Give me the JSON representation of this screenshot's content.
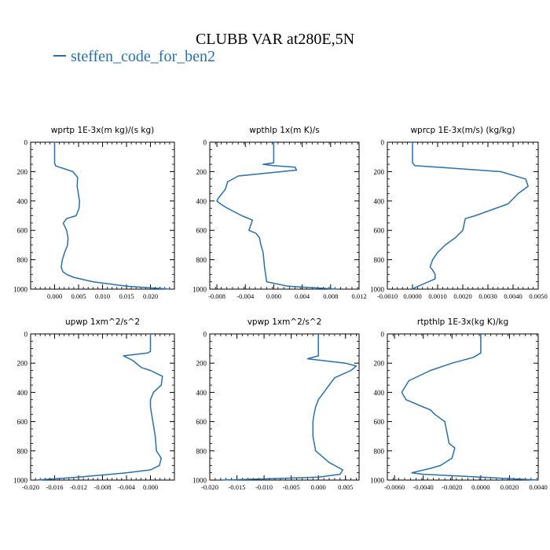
{
  "figure": {
    "title": "CLUBB VAR at280E,5N",
    "legend_label": "steffen_code_for_ben2",
    "series_color": "#2a6fa8"
  },
  "chart_data": [
    {
      "type": "line",
      "title": "wprtp  1E-3x(m kg)/(s kg)",
      "series": [
        {
          "name": "steffen_code_for_ben2",
          "x": [
            0.0,
            0.0,
            0.0,
            0.0002,
            0.001,
            0.0038,
            0.0048,
            0.0047,
            0.0049,
            0.0052,
            0.0051,
            0.0045,
            0.0025,
            0.0018,
            0.0025,
            0.0028,
            0.0027,
            0.0021,
            0.0016,
            0.0014,
            0.0017,
            0.0025,
            0.004,
            0.008,
            0.015,
            0.024
          ],
          "y": [
            0,
            100,
            140,
            160,
            170,
            200,
            240,
            300,
            340,
            400,
            450,
            500,
            520,
            550,
            600,
            650,
            700,
            750,
            800,
            850,
            880,
            900,
            920,
            950,
            980,
            1000
          ]
        }
      ],
      "xlim": [
        -0.005,
        0.025
      ],
      "ylim": [
        1000,
        0
      ],
      "xticks": [
        0.0,
        0.005,
        0.01,
        0.015,
        0.02
      ],
      "xticklabels": [
        "0.000",
        "0.005",
        "0.010",
        "0.015",
        "0.020"
      ],
      "yticks": [
        0,
        200,
        400,
        600,
        800,
        1000
      ]
    },
    {
      "type": "line",
      "title": "wpthlp  1x(m K)/s",
      "series": [
        {
          "name": "steffen_code_for_ben2",
          "x": [
            0.0,
            0.0,
            0.0,
            -0.0015,
            0.0,
            0.003,
            0.0032,
            -0.005,
            -0.0065,
            -0.0068,
            -0.0078,
            -0.008,
            -0.0075,
            -0.0065,
            -0.0045,
            -0.003,
            -0.0035,
            -0.0025,
            -0.002,
            -0.0018,
            -0.0015,
            -0.0014,
            -0.0013,
            -0.001,
            0.002,
            0.009
          ],
          "y": [
            0,
            100,
            140,
            150,
            160,
            170,
            190,
            230,
            270,
            320,
            380,
            400,
            420,
            450,
            500,
            530,
            600,
            620,
            650,
            700,
            750,
            800,
            850,
            950,
            980,
            1000
          ]
        }
      ],
      "xlim": [
        -0.009,
        0.012
      ],
      "ylim": [
        1000,
        0
      ],
      "xticks": [
        -0.008,
        -0.004,
        0.0,
        0.004,
        0.008,
        0.012
      ],
      "xticklabels": [
        "-0.008",
        "-0.004",
        "0.000",
        "0.004",
        "0.008",
        "0.012"
      ],
      "yticks": [
        0,
        200,
        400,
        600,
        800,
        1000
      ]
    },
    {
      "type": "line",
      "title": "wprcp  1E-3x(m/s) (kg/kg)",
      "series": [
        {
          "name": "steffen_code_for_ben2",
          "x": [
            0.0,
            0.0,
            0.0,
            0.0001,
            0.001,
            0.0035,
            0.0045,
            0.0046,
            0.0042,
            0.0038,
            0.0025,
            0.0021,
            0.002,
            0.0017,
            0.0013,
            0.001,
            0.0008,
            0.0007,
            0.0008,
            0.0009,
            0.0009,
            0.0005,
            0.0001,
            0.0
          ],
          "y": [
            0,
            100,
            140,
            160,
            170,
            200,
            250,
            300,
            350,
            420,
            500,
            520,
            600,
            650,
            700,
            750,
            800,
            850,
            870,
            900,
            930,
            960,
            990,
            1000
          ]
        }
      ],
      "xlim": [
        -0.001,
        0.005
      ],
      "ylim": [
        1000,
        0
      ],
      "xticks": [
        -0.001,
        0.0,
        0.001,
        0.002,
        0.003,
        0.004,
        0.005
      ],
      "xticklabels": [
        "-0.0010",
        "0.0000",
        "0.0010",
        "0.0020",
        "0.0030",
        "0.0040",
        "0.0050"
      ],
      "yticks": [
        0,
        200,
        400,
        600,
        800,
        1000
      ]
    },
    {
      "type": "line",
      "title": "upwp  1xm^2/s^2",
      "series": [
        {
          "name": "steffen_code_for_ben2",
          "x": [
            0.0,
            0.0,
            0.0,
            -0.0005,
            -0.0045,
            -0.003,
            -0.0015,
            0.0,
            0.001,
            0.002,
            0.0018,
            0.0005,
            0.0,
            0.0,
            0.0002,
            0.0004,
            0.0006,
            0.0008,
            0.001,
            0.0018,
            0.0015,
            0.0,
            -0.004,
            -0.012,
            -0.019
          ],
          "y": [
            0,
            100,
            120,
            130,
            150,
            180,
            230,
            250,
            270,
            290,
            350,
            400,
            450,
            500,
            550,
            600,
            650,
            700,
            800,
            850,
            900,
            930,
            950,
            980,
            1000
          ]
        }
      ],
      "xlim": [
        -0.02,
        0.004
      ],
      "ylim": [
        1000,
        0
      ],
      "xticks": [
        -0.02,
        -0.016,
        -0.012,
        -0.008,
        -0.004,
        0.0
      ],
      "xticklabels": [
        "-0.020",
        "-0.016",
        "-0.012",
        "-0.008",
        "-0.004",
        "0.000"
      ],
      "yticks": [
        0,
        200,
        400,
        600,
        800,
        1000
      ]
    },
    {
      "type": "line",
      "title": "vpwp  1xm^2/s^2",
      "series": [
        {
          "name": "steffen_code_for_ben2",
          "x": [
            0.0,
            0.0,
            0.0,
            -0.002,
            0.0025,
            0.005,
            0.007,
            0.006,
            0.003,
            0.002,
            0.001,
            0.0,
            -0.0005,
            -0.0008,
            -0.001,
            -0.001,
            -0.0005,
            0.002,
            0.0045,
            0.004,
            0.0,
            -0.008,
            -0.018
          ],
          "y": [
            0,
            100,
            150,
            170,
            190,
            200,
            220,
            250,
            300,
            350,
            400,
            450,
            500,
            550,
            600,
            700,
            800,
            880,
            930,
            960,
            980,
            990,
            1000
          ]
        }
      ],
      "xlim": [
        -0.02,
        0.0075
      ],
      "ylim": [
        1000,
        0
      ],
      "xticks": [
        -0.02,
        -0.015,
        -0.01,
        -0.005,
        0.0,
        0.005
      ],
      "xticklabels": [
        "-0.020",
        "-0.015",
        "-0.010",
        "-0.005",
        "0.000",
        "0.005"
      ],
      "yticks": [
        0,
        200,
        400,
        600,
        800,
        1000
      ]
    },
    {
      "type": "line",
      "title": "rtpthlp  1E-3x(kg K)/kg",
      "series": [
        {
          "name": "steffen_code_for_ben2",
          "x": [
            0.0,
            0.0,
            0.0,
            -0.0005,
            -0.002,
            -0.0035,
            -0.005,
            -0.0055,
            -0.0052,
            -0.004,
            -0.0035,
            -0.0032,
            -0.0025,
            -0.0023,
            -0.0022,
            -0.0018,
            -0.002,
            -0.0028,
            -0.0035,
            -0.0048,
            -0.004,
            0.0,
            0.004
          ],
          "y": [
            0,
            100,
            130,
            160,
            200,
            250,
            320,
            400,
            450,
            500,
            520,
            550,
            600,
            700,
            750,
            780,
            850,
            900,
            920,
            950,
            960,
            980,
            1000
          ]
        }
      ],
      "xlim": [
        -0.0065,
        0.004
      ],
      "ylim": [
        1000,
        0
      ],
      "xticks": [
        -0.006,
        -0.004,
        -0.002,
        0.0,
        0.002,
        0.004
      ],
      "xticklabels": [
        "-0.0060",
        "-0.0040",
        "-0.0020",
        "0.0000",
        "0.0020",
        "0.0040"
      ],
      "yticks": [
        0,
        200,
        400,
        600,
        800,
        1000
      ]
    }
  ]
}
